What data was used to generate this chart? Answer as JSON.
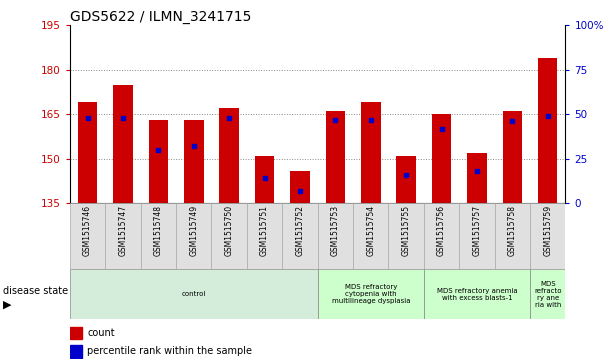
{
  "title": "GDS5622 / ILMN_3241715",
  "samples": [
    "GSM1515746",
    "GSM1515747",
    "GSM1515748",
    "GSM1515749",
    "GSM1515750",
    "GSM1515751",
    "GSM1515752",
    "GSM1515753",
    "GSM1515754",
    "GSM1515755",
    "GSM1515756",
    "GSM1515757",
    "GSM1515758",
    "GSM1515759"
  ],
  "count_values": [
    169,
    175,
    163,
    163,
    167,
    151,
    146,
    166,
    169,
    151,
    165,
    152,
    166,
    184
  ],
  "percentile_values": [
    48,
    48,
    30,
    32,
    48,
    14,
    7,
    47,
    47,
    16,
    42,
    18,
    46,
    49
  ],
  "y_min": 135,
  "y_max": 195,
  "y_ticks_left": [
    135,
    150,
    165,
    180,
    195
  ],
  "y_ticks_right": [
    0,
    25,
    50,
    75,
    100
  ],
  "bar_color": "#cc0000",
  "dot_color": "#0000cc",
  "disease_groups": [
    {
      "label": "control",
      "start": 0,
      "end": 7,
      "color": "#d4edda"
    },
    {
      "label": "MDS refractory\ncytopenia with\nmultilineage dysplasia",
      "start": 7,
      "end": 10,
      "color": "#ccffcc"
    },
    {
      "label": "MDS refractory anemia\nwith excess blasts-1",
      "start": 10,
      "end": 13,
      "color": "#ccffcc"
    },
    {
      "label": "MDS\nrefracto\nry ane\nria with",
      "start": 13,
      "end": 14,
      "color": "#ccffcc"
    }
  ],
  "legend_count_label": "count",
  "legend_percentile_label": "percentile rank within the sample",
  "x_label_disease": "disease state",
  "grid_color": "#888888",
  "bg_color": "#ffffff",
  "left_label_color": "#cc0000",
  "right_label_color": "#0000cc",
  "bar_width": 0.55
}
